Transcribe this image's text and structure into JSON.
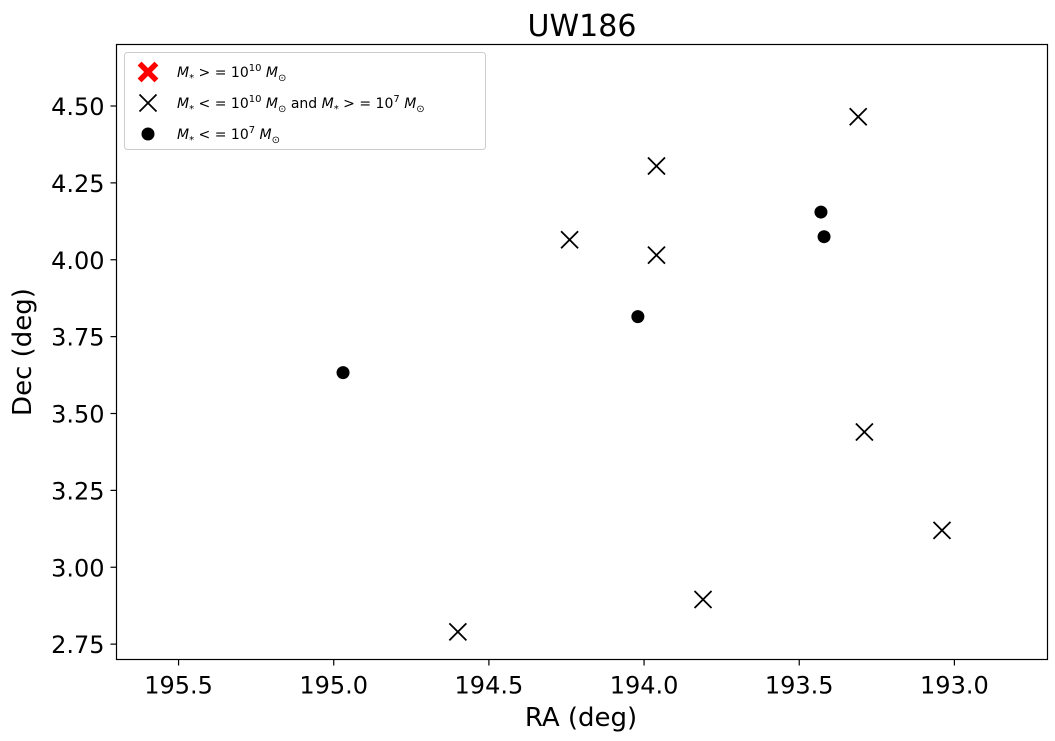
{
  "chart_data": {
    "type": "scatter",
    "title": "UW186",
    "xlabel": "RA (deg)",
    "ylabel": "Dec (deg)",
    "x_inverted": true,
    "xlim": [
      195.7,
      192.7
    ],
    "ylim": [
      2.7,
      4.7
    ],
    "xticks": [
      195.5,
      195.0,
      194.5,
      194.0,
      193.5,
      193.0
    ],
    "xtick_labels": [
      "195.5",
      "195.0",
      "194.5",
      "194.0",
      "193.5",
      "193.0"
    ],
    "yticks": [
      2.75,
      3.0,
      3.25,
      3.5,
      3.75,
      4.0,
      4.25,
      4.5
    ],
    "ytick_labels": [
      "2.75",
      "3.00",
      "3.25",
      "3.50",
      "3.75",
      "4.00",
      "4.25",
      "4.50"
    ],
    "grid": false,
    "legend_position": "top-left",
    "series": [
      {
        "name_parts": {
          "pre": "M",
          "sub": "*",
          "mid": " > = 10",
          "sup": "10",
          "unit": " M",
          "unit_sub": "⊙"
        },
        "marker": "filled-x",
        "color": "#ff0000",
        "points": []
      },
      {
        "name_parts": {
          "pre": "M",
          "sub": "*",
          "mid": " < = 10",
          "sup": "10",
          "unit": " M",
          "unit_sub": "⊙",
          "and": " and ",
          "pre2": "M",
          "sub2": "*",
          "mid2": " > = 10",
          "sup2": "7",
          "unit2": " M",
          "unit_sub2": "⊙"
        },
        "marker": "x",
        "color": "#000000",
        "points": [
          {
            "x": 193.31,
            "y": 4.465
          },
          {
            "x": 193.96,
            "y": 4.305
          },
          {
            "x": 194.24,
            "y": 4.065
          },
          {
            "x": 193.96,
            "y": 4.015
          },
          {
            "x": 193.29,
            "y": 3.44
          },
          {
            "x": 193.04,
            "y": 3.12
          },
          {
            "x": 193.81,
            "y": 2.895
          },
          {
            "x": 194.6,
            "y": 2.79
          }
        ]
      },
      {
        "name_parts": {
          "pre": "M",
          "sub": "*",
          "mid": " < = 10",
          "sup": "7",
          "unit": " M",
          "unit_sub": "⊙"
        },
        "marker": "circle",
        "color": "#000000",
        "points": [
          {
            "x": 193.43,
            "y": 4.155
          },
          {
            "x": 193.42,
            "y": 4.075
          },
          {
            "x": 194.02,
            "y": 3.815
          },
          {
            "x": 194.97,
            "y": 3.633
          }
        ]
      }
    ]
  }
}
